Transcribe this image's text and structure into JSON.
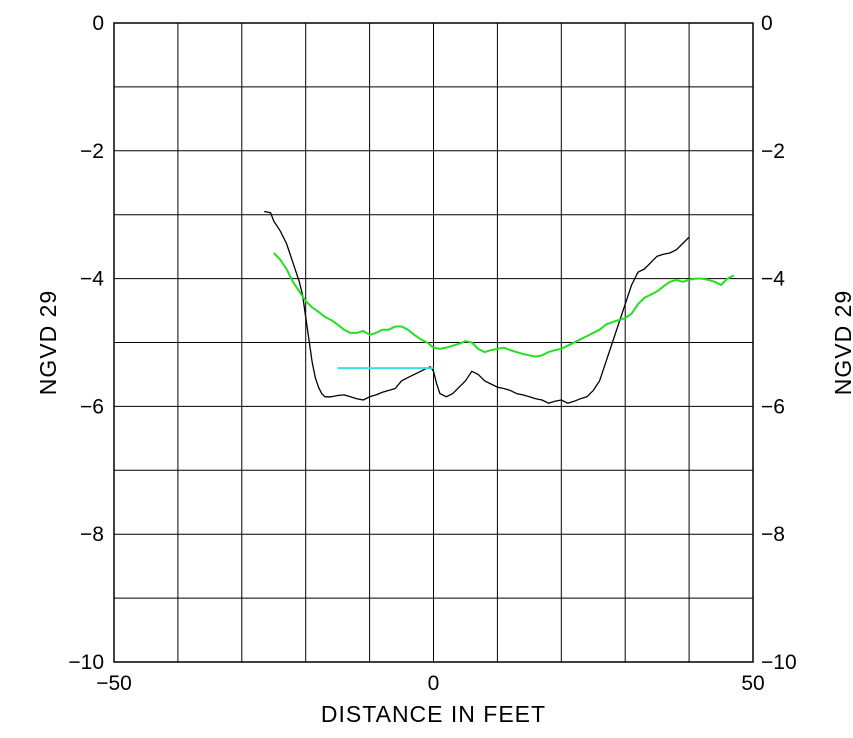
{
  "chart_data": {
    "type": "line",
    "title": "",
    "xlabel": "DISTANCE IN FEET",
    "ylabel_left": "NGVD 29",
    "ylabel_right": "NGVD 29",
    "xlim": [
      -50,
      50
    ],
    "ylim": [
      -10,
      0
    ],
    "x_ticks": [
      -50,
      0,
      50
    ],
    "x_tick_labels": [
      "−50",
      "0",
      "50"
    ],
    "y_ticks": [
      0,
      -2,
      -4,
      -6,
      -8,
      -10
    ],
    "y_tick_labels": [
      "0",
      "−2",
      "−4",
      "−6",
      "−8",
      "−10"
    ],
    "grid": true,
    "x_grid_step": 10,
    "y_grid_step": 1,
    "series": [
      {
        "color": "#000000",
        "x": [
          -26.5,
          -25.5,
          -25,
          -24,
          -23,
          -22,
          -21,
          -20.5,
          -20,
          -19.5,
          -19,
          -18.5,
          -18,
          -17.5,
          -17,
          -16,
          -15,
          -14,
          -13,
          -12,
          -11,
          -10,
          -9,
          -8,
          -7,
          -6,
          -5,
          -4,
          -3,
          -2,
          -1,
          -0.5,
          0,
          0.5,
          1,
          2,
          3,
          4,
          5,
          6,
          7,
          8,
          9,
          10,
          11,
          12,
          13,
          14,
          15,
          16,
          17,
          18,
          19,
          20,
          21,
          22,
          23,
          24,
          25,
          26,
          27,
          28,
          29,
          30,
          31,
          32,
          33,
          34,
          35,
          36,
          37,
          38,
          39,
          40
        ],
        "y": [
          -2.95,
          -2.97,
          -3.1,
          -3.25,
          -3.45,
          -3.75,
          -4.05,
          -4.25,
          -4.6,
          -4.95,
          -5.3,
          -5.55,
          -5.7,
          -5.8,
          -5.85,
          -5.85,
          -5.83,
          -5.82,
          -5.85,
          -5.88,
          -5.9,
          -5.85,
          -5.82,
          -5.78,
          -5.75,
          -5.72,
          -5.6,
          -5.55,
          -5.5,
          -5.45,
          -5.4,
          -5.38,
          -5.45,
          -5.65,
          -5.8,
          -5.85,
          -5.8,
          -5.7,
          -5.6,
          -5.45,
          -5.5,
          -5.6,
          -5.65,
          -5.7,
          -5.72,
          -5.75,
          -5.8,
          -5.82,
          -5.85,
          -5.88,
          -5.9,
          -5.95,
          -5.92,
          -5.9,
          -5.95,
          -5.92,
          -5.88,
          -5.85,
          -5.75,
          -5.6,
          -5.3,
          -5.0,
          -4.7,
          -4.4,
          -4.1,
          -3.9,
          -3.85,
          -3.75,
          -3.65,
          -3.62,
          -3.6,
          -3.55,
          -3.45,
          -3.35
        ]
      },
      {
        "color": "#22e022",
        "x": [
          -25,
          -24,
          -23,
          -22,
          -21,
          -20,
          -19,
          -18,
          -17,
          -16,
          -15,
          -14,
          -13,
          -12,
          -11,
          -10,
          -9,
          -8,
          -7,
          -6,
          -5,
          -4,
          -3,
          -2,
          -1,
          0,
          1,
          2,
          3,
          4,
          5,
          6,
          7,
          8,
          9,
          10,
          11,
          12,
          13,
          14,
          15,
          16,
          17,
          18,
          19,
          20,
          21,
          22,
          23,
          24,
          25,
          26,
          27,
          28,
          29,
          30,
          31,
          32,
          33,
          34,
          35,
          36,
          37,
          38,
          39,
          40,
          41,
          42,
          43,
          44,
          45,
          46,
          47
        ],
        "y": [
          -3.6,
          -3.7,
          -3.85,
          -4.05,
          -4.2,
          -4.35,
          -4.45,
          -4.52,
          -4.6,
          -4.65,
          -4.72,
          -4.8,
          -4.85,
          -4.85,
          -4.82,
          -4.88,
          -4.85,
          -4.8,
          -4.8,
          -4.75,
          -4.75,
          -4.8,
          -4.88,
          -4.95,
          -5.0,
          -5.08,
          -5.1,
          -5.08,
          -5.05,
          -5.02,
          -4.98,
          -5.0,
          -5.1,
          -5.15,
          -5.12,
          -5.1,
          -5.08,
          -5.12,
          -5.15,
          -5.18,
          -5.2,
          -5.22,
          -5.2,
          -5.15,
          -5.12,
          -5.1,
          -5.05,
          -5.0,
          -4.95,
          -4.9,
          -4.85,
          -4.8,
          -4.72,
          -4.68,
          -4.65,
          -4.62,
          -4.55,
          -4.4,
          -4.3,
          -4.25,
          -4.2,
          -4.12,
          -4.05,
          -4.02,
          -4.05,
          -4.02,
          -4.0,
          -4.0,
          -4.02,
          -4.05,
          -4.1,
          -4.0,
          -3.95
        ]
      },
      {
        "color": "#33e3e3",
        "x": [
          -15,
          0
        ],
        "y": [
          -5.4,
          -5.4
        ]
      }
    ]
  }
}
